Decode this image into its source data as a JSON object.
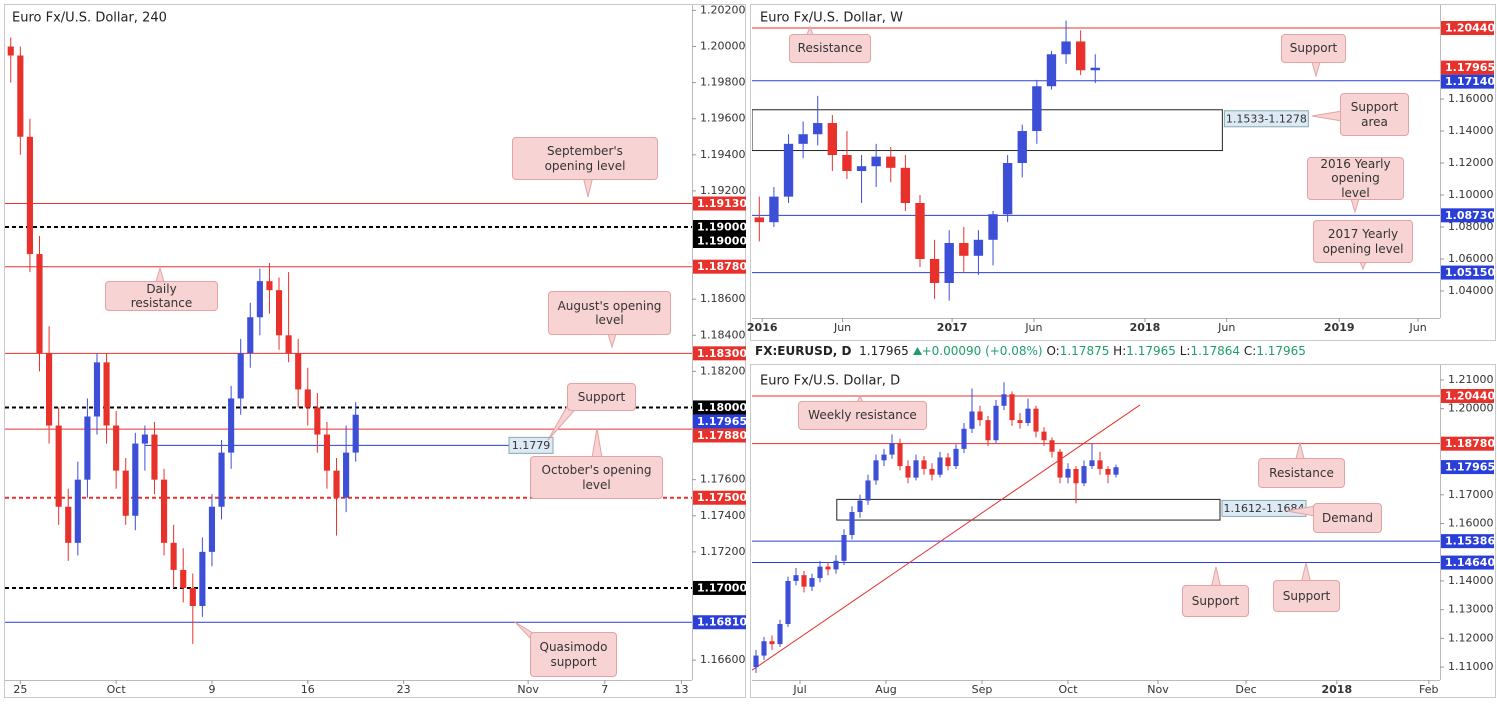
{
  "quote": {
    "symbol": "FX:EURUSD, D",
    "last": "1.17965",
    "change": "+0.00090 (+0.08%)",
    "fields": [
      {
        "label": "O:",
        "value": "1.17875"
      },
      {
        "label": "H:",
        "value": "1.17965"
      },
      {
        "label": "L:",
        "value": "1.17864"
      },
      {
        "label": "C:",
        "value": "1.17965"
      }
    ]
  },
  "chart_data": [
    {
      "type": "candlestick",
      "title": "Euro Fx/U.S. Dollar, 240",
      "up_color": "#3d4fd6",
      "down_color": "#e8312b",
      "xlim": [
        -0.6,
        71.1
      ],
      "ylim": [
        1.1649,
        1.2023
      ],
      "xticks": [
        {
          "value": 1,
          "label": "25"
        },
        {
          "value": 11,
          "label": "Oct"
        },
        {
          "value": 21,
          "label": "9"
        },
        {
          "value": 31,
          "label": "16"
        },
        {
          "value": 41,
          "label": "23"
        },
        {
          "value": 54,
          "label": "Nov"
        },
        {
          "value": 62,
          "label": "7"
        },
        {
          "value": 70,
          "label": "13"
        }
      ],
      "yticks": [
        {
          "value": 1.202,
          "label": "1.20200"
        },
        {
          "value": 1.2,
          "label": "1.20000"
        },
        {
          "value": 1.198,
          "label": "1.19800"
        },
        {
          "value": 1.196,
          "label": "1.19600"
        },
        {
          "value": 1.194,
          "label": "1.19400"
        },
        {
          "value": 1.192,
          "label": "1.19200"
        },
        {
          "value": 1.186,
          "label": "1.18600"
        },
        {
          "value": 1.184,
          "label": "1.18400"
        },
        {
          "value": 1.182,
          "label": "1.18200"
        },
        {
          "value": 1.176,
          "label": "1.17600"
        },
        {
          "value": 1.174,
          "label": "1.17400"
        },
        {
          "value": 1.172,
          "label": "1.17200"
        },
        {
          "value": 1.166,
          "label": "1.16600"
        }
      ],
      "ohlc": [
        [
          1.2,
          1.2005,
          1.198,
          1.1995
        ],
        [
          1.1995,
          1.2,
          1.194,
          1.195
        ],
        [
          1.195,
          1.196,
          1.1875,
          1.1885
        ],
        [
          1.1885,
          1.1895,
          1.182,
          1.183
        ],
        [
          1.183,
          1.1845,
          1.178,
          1.179
        ],
        [
          1.179,
          1.18,
          1.1735,
          1.1745
        ],
        [
          1.1745,
          1.1755,
          1.1715,
          1.1725
        ],
        [
          1.1725,
          1.177,
          1.1718,
          1.176
        ],
        [
          1.176,
          1.1805,
          1.175,
          1.1795
        ],
        [
          1.1795,
          1.183,
          1.1785,
          1.1825
        ],
        [
          1.1825,
          1.183,
          1.178,
          1.179
        ],
        [
          1.179,
          1.1798,
          1.1755,
          1.1765
        ],
        [
          1.1765,
          1.1772,
          1.1735,
          1.174
        ],
        [
          1.174,
          1.1786,
          1.1732,
          1.178
        ],
        [
          1.178,
          1.179,
          1.1765,
          1.1785
        ],
        [
          1.1785,
          1.1792,
          1.1752,
          1.176
        ],
        [
          1.176,
          1.1766,
          1.1718,
          1.1725
        ],
        [
          1.1725,
          1.1735,
          1.17,
          1.171
        ],
        [
          1.171,
          1.1722,
          1.1692,
          1.17
        ],
        [
          1.17,
          1.1708,
          1.1669,
          1.169
        ],
        [
          1.169,
          1.1728,
          1.1684,
          1.172
        ],
        [
          1.172,
          1.1752,
          1.1712,
          1.1745
        ],
        [
          1.1745,
          1.1782,
          1.1738,
          1.1775
        ],
        [
          1.1775,
          1.1812,
          1.1766,
          1.1805
        ],
        [
          1.1805,
          1.1838,
          1.1796,
          1.183
        ],
        [
          1.183,
          1.1858,
          1.1822,
          1.185
        ],
        [
          1.185,
          1.1877,
          1.184,
          1.187
        ],
        [
          1.187,
          1.188,
          1.1852,
          1.1865
        ],
        [
          1.1865,
          1.1872,
          1.1832,
          1.184
        ],
        [
          1.184,
          1.1875,
          1.1825,
          1.183
        ],
        [
          1.183,
          1.1838,
          1.18,
          1.181
        ],
        [
          1.181,
          1.1822,
          1.179,
          1.18
        ],
        [
          1.18,
          1.1808,
          1.1775,
          1.1785
        ],
        [
          1.1785,
          1.1792,
          1.1755,
          1.1765
        ],
        [
          1.1765,
          1.1772,
          1.1729,
          1.175
        ],
        [
          1.175,
          1.179,
          1.1742,
          1.1775
        ],
        [
          1.1775,
          1.1803,
          1.177,
          1.1796
        ]
      ],
      "levels": [
        {
          "value": 1.1913,
          "label": "1.19130",
          "color": "#e8312b",
          "line": "solid"
        },
        {
          "value": 1.19,
          "label": "1.19000",
          "color": "#000000",
          "line": "dashed"
        },
        {
          "value": 1.19,
          "label": "1.19000",
          "color": "#000000",
          "line": "none"
        },
        {
          "value": 1.1878,
          "label": "1.18780",
          "color": "#e8312b",
          "line": "solid"
        },
        {
          "value": 1.183,
          "label": "1.18300",
          "color": "#e8312b",
          "line": "solid"
        },
        {
          "value": 1.18,
          "label": "1.18000",
          "color": "#000000",
          "line": "dashed"
        },
        {
          "value": 1.17965,
          "label": "1.17965",
          "color": "#2a3fd9",
          "line": "none"
        },
        {
          "value": 1.1788,
          "label": "1.17880",
          "color": "#e8312b",
          "line": "solid"
        },
        {
          "value": 1.175,
          "label": "1.17500",
          "color": "#e8312b",
          "line": "dashed"
        },
        {
          "value": 1.17,
          "label": "1.17000",
          "color": "#000000",
          "line": "dashed"
        },
        {
          "value": 1.1681,
          "label": "1.16810",
          "color": "#2a3fd9",
          "line": "solid"
        }
      ],
      "segments": [
        {
          "value": 1.1779,
          "label": "1.1779",
          "x": [
            14.0,
            52.0
          ],
          "color": "#2a3fd9"
        }
      ],
      "zones": [],
      "annotations": [
        "September's opening level",
        "Daily resistance",
        "August's opening level",
        "Support",
        "October's opening level",
        "Quasimodo support"
      ]
    },
    {
      "type": "candlestick",
      "title": "Euro Fx/U.S. Dollar, W",
      "up_color": "#3d4fd6",
      "down_color": "#e8312b",
      "xlim": [
        -0.5,
        46.6
      ],
      "ylim": [
        1.0231,
        1.2188
      ],
      "xticks": [
        {
          "value": 0.2,
          "label": "2016"
        },
        {
          "value": 5.7,
          "label": "Jun"
        },
        {
          "value": 13.2,
          "label": "2017"
        },
        {
          "value": 18.8,
          "label": "Jun"
        },
        {
          "value": 26.4,
          "label": "2018"
        },
        {
          "value": 32,
          "label": "Jun"
        },
        {
          "value": 39.7,
          "label": "2019"
        },
        {
          "value": 45.1,
          "label": "Jun"
        }
      ],
      "yticks": [
        {
          "value": 1.16,
          "label": "1.16000"
        },
        {
          "value": 1.14,
          "label": "1.14000"
        },
        {
          "value": 1.12,
          "label": "1.12000"
        },
        {
          "value": 1.1,
          "label": "1.10000"
        },
        {
          "value": 1.08,
          "label": "1.08000"
        },
        {
          "value": 1.06,
          "label": "1.06000"
        },
        {
          "value": 1.04,
          "label": "1.04000"
        }
      ],
      "ohlc": [
        [
          1.086,
          1.099,
          1.071,
          1.083
        ],
        [
          1.083,
          1.105,
          1.08,
          1.099
        ],
        [
          1.099,
          1.138,
          1.095,
          1.132
        ],
        [
          1.132,
          1.146,
          1.123,
          1.138
        ],
        [
          1.138,
          1.162,
          1.131,
          1.145
        ],
        [
          1.145,
          1.15,
          1.115,
          1.125
        ],
        [
          1.125,
          1.14,
          1.11,
          1.115
        ],
        [
          1.115,
          1.125,
          1.095,
          1.118
        ],
        [
          1.118,
          1.132,
          1.105,
          1.124
        ],
        [
          1.124,
          1.13,
          1.108,
          1.117
        ],
        [
          1.117,
          1.125,
          1.09,
          1.095
        ],
        [
          1.095,
          1.1,
          1.055,
          1.06
        ],
        [
          1.06,
          1.072,
          1.035,
          1.045
        ],
        [
          1.045,
          1.078,
          1.034,
          1.07
        ],
        [
          1.07,
          1.08,
          1.052,
          1.062
        ],
        [
          1.062,
          1.078,
          1.05,
          1.072
        ],
        [
          1.072,
          1.09,
          1.056,
          1.088
        ],
        [
          1.088,
          1.125,
          1.083,
          1.12
        ],
        [
          1.12,
          1.144,
          1.111,
          1.14
        ],
        [
          1.14,
          1.172,
          1.132,
          1.168
        ],
        [
          1.168,
          1.19,
          1.166,
          1.188
        ],
        [
          1.188,
          1.209,
          1.182,
          1.196
        ],
        [
          1.196,
          1.203,
          1.175,
          1.178
        ],
        [
          1.178,
          1.188,
          1.17,
          1.1796
        ]
      ],
      "levels": [
        {
          "value": 1.2044,
          "label": "1.20440",
          "color": "#e8312b",
          "line": "solid"
        },
        {
          "value": 1.17965,
          "label": "1.17965",
          "color": "#e8312b",
          "line": "none"
        },
        {
          "value": 1.1714,
          "label": "1.17140",
          "color": "#2a3fd9",
          "line": "solid"
        },
        {
          "value": 1.0873,
          "label": "1.08730",
          "color": "#2a3fd9",
          "line": "solid"
        },
        {
          "value": 1.0515,
          "label": "1.05150",
          "color": "#2a3fd9",
          "line": "solid"
        }
      ],
      "segments": [],
      "zones": [
        {
          "top": 1.1533,
          "bottom": 1.1278,
          "label": "1.1533-1.1278",
          "x": [
            -0.5,
            31.7
          ]
        }
      ],
      "annotations": [
        "Resistance",
        "Support",
        "Support area",
        "2016 Yearly opening level",
        "2017 Yearly opening level"
      ]
    },
    {
      "type": "candlestick",
      "title": "Euro Fx/U.S. Dollar, D",
      "up_color": "#3d4fd6",
      "down_color": "#e8312b",
      "xlim": [
        -0.5,
        85.5
      ],
      "ylim": [
        1.1055,
        1.2152
      ],
      "xticks": [
        {
          "value": 5.5,
          "label": "Jul"
        },
        {
          "value": 16.25,
          "label": "Aug"
        },
        {
          "value": 28.25,
          "label": "Sep"
        },
        {
          "value": 39,
          "label": "Oct"
        },
        {
          "value": 50.25,
          "label": "Nov"
        },
        {
          "value": 61.25,
          "label": "Dec"
        },
        {
          "value": 72.6,
          "label": "2018"
        },
        {
          "value": 84.1,
          "label": "Feb"
        }
      ],
      "yticks": [
        {
          "value": 1.21,
          "label": "1.21000"
        },
        {
          "value": 1.2,
          "label": "1.20000"
        },
        {
          "value": 1.17,
          "label": "1.17000"
        },
        {
          "value": 1.16,
          "label": "1.16000"
        },
        {
          "value": 1.14,
          "label": "1.14000"
        },
        {
          "value": 1.13,
          "label": "1.13000"
        },
        {
          "value": 1.12,
          "label": "1.12000"
        },
        {
          "value": 1.11,
          "label": "1.11000"
        }
      ],
      "ohlc": [
        [
          1.11,
          1.116,
          1.108,
          1.114
        ],
        [
          1.114,
          1.1205,
          1.1125,
          1.119
        ],
        [
          1.119,
          1.121,
          1.116,
          1.118
        ],
        [
          1.118,
          1.1265,
          1.117,
          1.125
        ],
        [
          1.125,
          1.1415,
          1.124,
          1.14
        ],
        [
          1.14,
          1.1445,
          1.1385,
          1.142
        ],
        [
          1.142,
          1.1435,
          1.136,
          1.138
        ],
        [
          1.138,
          1.1425,
          1.1365,
          1.141
        ],
        [
          1.141,
          1.147,
          1.1395,
          1.145
        ],
        [
          1.145,
          1.1465,
          1.142,
          1.144
        ],
        [
          1.144,
          1.149,
          1.1425,
          1.147
        ],
        [
          1.147,
          1.158,
          1.1455,
          1.156
        ],
        [
          1.156,
          1.166,
          1.1545,
          1.164
        ],
        [
          1.164,
          1.17,
          1.162,
          1.168
        ],
        [
          1.168,
          1.177,
          1.1665,
          1.175
        ],
        [
          1.175,
          1.184,
          1.1735,
          1.182
        ],
        [
          1.182,
          1.186,
          1.18,
          1.184
        ],
        [
          1.184,
          1.191,
          1.1825,
          1.188
        ],
        [
          1.188,
          1.1895,
          1.1785,
          1.18
        ],
        [
          1.18,
          1.182,
          1.174,
          1.176
        ],
        [
          1.176,
          1.184,
          1.175,
          1.182
        ],
        [
          1.182,
          1.1835,
          1.177,
          1.179
        ],
        [
          1.179,
          1.181,
          1.175,
          1.177
        ],
        [
          1.177,
          1.185,
          1.176,
          1.183
        ],
        [
          1.183,
          1.1845,
          1.1785,
          1.18
        ],
        [
          1.18,
          1.1875,
          1.179,
          1.186
        ],
        [
          1.186,
          1.195,
          1.1845,
          1.193
        ],
        [
          1.193,
          1.207,
          1.1915,
          1.199
        ],
        [
          1.199,
          1.201,
          1.194,
          1.196
        ],
        [
          1.196,
          1.1975,
          1.187,
          1.189
        ],
        [
          1.189,
          1.203,
          1.188,
          1.201
        ],
        [
          1.201,
          1.2092,
          1.1995,
          1.205
        ],
        [
          1.205,
          1.206,
          1.194,
          1.196
        ],
        [
          1.196,
          1.1985,
          1.193,
          1.195
        ],
        [
          1.195,
          1.2035,
          1.194,
          1.2
        ],
        [
          1.2,
          1.201,
          1.19,
          1.192
        ],
        [
          1.192,
          1.1935,
          1.187,
          1.189
        ],
        [
          1.189,
          1.19,
          1.183,
          1.185
        ],
        [
          1.185,
          1.186,
          1.174,
          1.176
        ],
        [
          1.176,
          1.181,
          1.174,
          1.179
        ],
        [
          1.179,
          1.18,
          1.167,
          1.174
        ],
        [
          1.174,
          1.182,
          1.173,
          1.18
        ],
        [
          1.18,
          1.188,
          1.179,
          1.182
        ],
        [
          1.182,
          1.185,
          1.177,
          1.179
        ],
        [
          1.179,
          1.18,
          1.174,
          1.177
        ],
        [
          1.177,
          1.1805,
          1.176,
          1.1796
        ]
      ],
      "levels": [
        {
          "value": 1.2044,
          "label": "1.20440",
          "color": "#e8312b",
          "line": "solid"
        },
        {
          "value": 1.1878,
          "label": "1.18780",
          "color": "#e8312b",
          "line": "solid"
        },
        {
          "value": 1.17965,
          "label": "1.17965",
          "color": "#2a3fd9",
          "line": "none"
        },
        {
          "value": 1.15386,
          "label": "1.15386",
          "color": "#2a3fd9",
          "line": "solid"
        },
        {
          "value": 1.1464,
          "label": "1.14640",
          "color": "#2a3fd9",
          "line": "solid"
        }
      ],
      "segments": [],
      "zones": [
        {
          "top": 1.1684,
          "bottom": 1.1612,
          "label": "1.1612-1.1684",
          "x": [
            10.1,
            58.0
          ]
        }
      ],
      "trendline": {
        "x": [
          -0.5,
          48
        ],
        "y": [
          1.1089,
          1.2013
        ],
        "color": "#e8312b"
      },
      "annotations": [
        "Weekly resistance",
        "Resistance",
        "Demand",
        "Support",
        "Support"
      ]
    }
  ]
}
